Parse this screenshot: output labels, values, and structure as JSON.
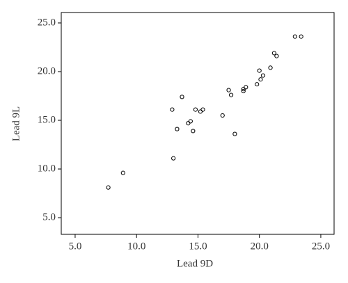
{
  "chart_data": {
    "type": "scatter",
    "x_label": "Lead 9D",
    "y_label": "Lead 9L",
    "xlim": [
      3.87,
      26.08
    ],
    "ylim": [
      3.29,
      26.07
    ],
    "xticks": [
      {
        "value": 5,
        "label": "5.0"
      },
      {
        "value": 10,
        "label": "10.0"
      },
      {
        "value": 15,
        "label": "15.0"
      },
      {
        "value": 20,
        "label": "20.0"
      },
      {
        "value": 25,
        "label": "25.0"
      }
    ],
    "yticks": [
      {
        "value": 5,
        "label": "5.0"
      },
      {
        "value": 10,
        "label": "10.0"
      },
      {
        "value": 15,
        "label": "15.0"
      },
      {
        "value": 20,
        "label": "20.0"
      },
      {
        "value": 25,
        "label": "25.0"
      }
    ],
    "color": "#000000",
    "x": [
      7.7,
      8.9,
      12.9,
      13.0,
      13.3,
      13.7,
      14.2,
      14.4,
      14.6,
      14.8,
      15.2,
      15.4,
      17.0,
      17.5,
      17.7,
      18.0,
      18.7,
      18.7,
      18.9,
      19.8,
      20.0,
      20.1,
      20.3,
      20.9,
      21.2,
      21.4,
      22.9,
      23.4
    ],
    "values": [
      8.1,
      9.6,
      16.1,
      11.1,
      14.1,
      17.4,
      14.7,
      14.9,
      13.9,
      16.1,
      15.9,
      16.1,
      15.5,
      18.1,
      17.6,
      13.6,
      18.0,
      18.2,
      18.4,
      18.7,
      20.1,
      19.2,
      19.6,
      20.4,
      21.9,
      21.6,
      23.6,
      23.6
    ]
  }
}
